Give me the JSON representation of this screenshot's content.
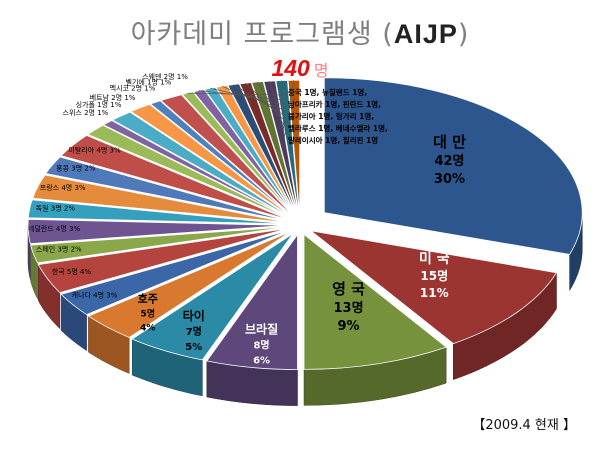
{
  "header": {
    "title_prefix": "아카데미 프로그램생 (",
    "title_aijp": "AIJP",
    "title_suffix": ")",
    "total_value": "140",
    "total_unit": "명"
  },
  "footnote": "【2009.4 현재 】",
  "chart_data": {
    "type": "pie",
    "title": "아카데미 프로그램생 (AIJP)",
    "total": 140,
    "unit": "명",
    "grouped_label": [
      "중국 1명, 뉴질랜드 1명,",
      "남아프리카 1명, 핀란드 1명,",
      "불가리아 1명, 헝가리 1명,",
      "벨라루스 1명, 베네수엘라 1명,",
      "말레이시아 1명, 필리핀 1명"
    ],
    "slices": [
      {
        "name": "대 만",
        "count": 42,
        "count_label": "42명",
        "percent_label": "30%",
        "color": "#2e568e"
      },
      {
        "name": "미 국",
        "count": 15,
        "count_label": "15명",
        "percent_label": "11%",
        "color": "#9b3532"
      },
      {
        "name": "영 국",
        "count": 13,
        "count_label": "13명",
        "percent_label": "9%",
        "color": "#76923c"
      },
      {
        "name": "브라질",
        "count": 8,
        "count_label": "8명",
        "percent_label": "6%",
        "color": "#5d477b"
      },
      {
        "name": "타이",
        "count": 7,
        "count_label": "7명",
        "percent_label": "5%",
        "color": "#2b8aa6"
      },
      {
        "name": "호주",
        "count": 5,
        "count_label": "5명",
        "percent_label": "4%",
        "color": "#d9782f"
      },
      {
        "name": "캐나다",
        "count": 4,
        "count_label": "4명",
        "percent_label": "3%",
        "color": "#3b66a8"
      },
      {
        "name": "한국",
        "count": 5,
        "count_label": "5명",
        "percent_label": "4%",
        "color": "#b5433e"
      },
      {
        "name": "스페인",
        "count": 3,
        "count_label": "3명",
        "percent_label": "2%",
        "color": "#8aa84a"
      },
      {
        "name": "네덜란드",
        "count": 4,
        "count_label": "4명",
        "percent_label": "3%",
        "color": "#6e5592"
      },
      {
        "name": "독일",
        "count": 3,
        "count_label": "3명",
        "percent_label": "2%",
        "color": "#35a0bd"
      },
      {
        "name": "프랑스",
        "count": 4,
        "count_label": "4명",
        "percent_label": "3%",
        "color": "#e48b3c"
      },
      {
        "name": "홍콩",
        "count": 3,
        "count_label": "3명",
        "percent_label": "2%",
        "color": "#4f79b9"
      },
      {
        "name": "이탈리아",
        "count": 4,
        "count_label": "4명",
        "percent_label": "3%",
        "color": "#c04e48"
      },
      {
        "name": "스위스",
        "count": 2,
        "count_label": "2명",
        "percent_label": "1%",
        "color": "#9bbb59"
      },
      {
        "name": "싱가폴",
        "count": 1,
        "count_label": "1명",
        "percent_label": "1%",
        "color": "#8064a2"
      },
      {
        "name": "베트남",
        "count": 2,
        "count_label": "2명",
        "percent_label": "1%",
        "color": "#4bacc6"
      },
      {
        "name": "멕시코",
        "count": 2,
        "count_label": "2명",
        "percent_label": "1%",
        "color": "#f79646"
      },
      {
        "name": "벨기에",
        "count": 1,
        "count_label": "1명",
        "percent_label": "1%",
        "color": "#4f81bd"
      },
      {
        "name": "스웨덴",
        "count": 2,
        "count_label": "2명",
        "percent_label": "1%",
        "color": "#c0504d"
      },
      {
        "name": "중국",
        "count": 1,
        "color": "#9bbb59"
      },
      {
        "name": "뉴질랜드",
        "count": 1,
        "color": "#8064a2"
      },
      {
        "name": "남아프리카",
        "count": 1,
        "color": "#4bacc6"
      },
      {
        "name": "핀란드",
        "count": 1,
        "color": "#f79646"
      },
      {
        "name": "불가리아",
        "count": 1,
        "color": "#2c4d75"
      },
      {
        "name": "헝가리",
        "count": 1,
        "color": "#772c2a"
      },
      {
        "name": "벨라루스",
        "count": 1,
        "color": "#5f7530"
      },
      {
        "name": "베네수엘라",
        "count": 1,
        "color": "#4d3b62"
      },
      {
        "name": "말레이시아",
        "count": 1,
        "color": "#276a7c"
      },
      {
        "name": "필리핀",
        "count": 1,
        "color": "#b65708"
      }
    ]
  }
}
